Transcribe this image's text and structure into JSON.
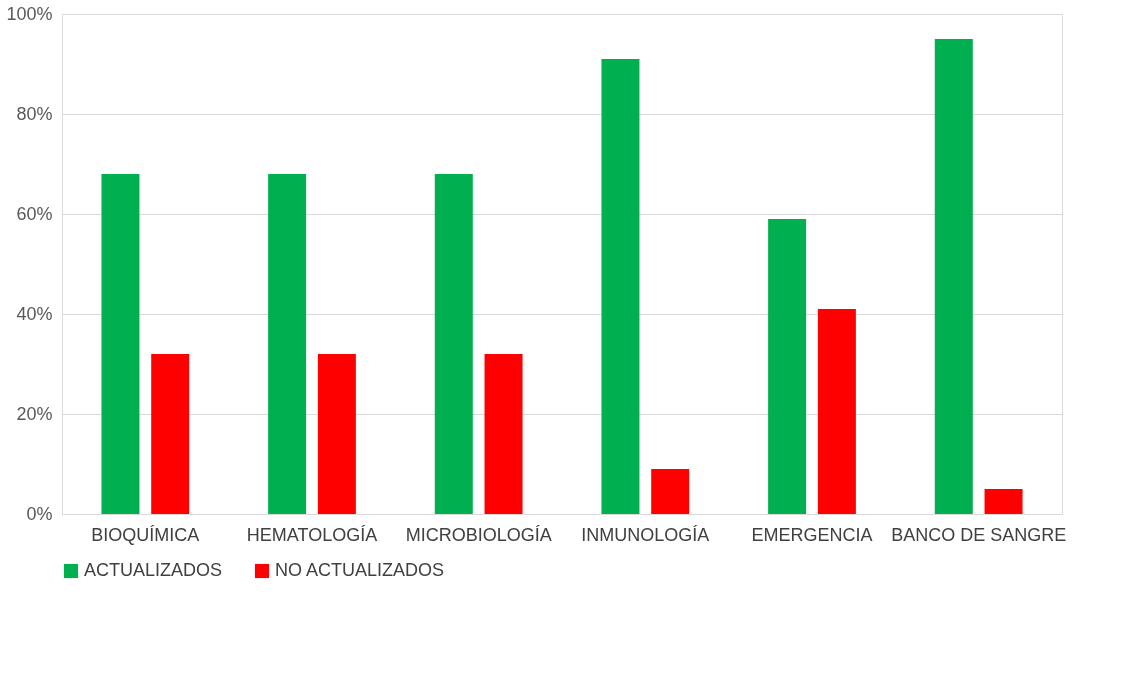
{
  "chart_data": {
    "type": "bar",
    "categories": [
      "BIOQUÍMICA",
      "HEMATOLOGÍA",
      "MICROBIOLOGÍA",
      "INMUNOLOGÍA",
      "EMERGENCIA",
      "BANCO DE SANGRE"
    ],
    "series": [
      {
        "name": "ACTUALIZADOS",
        "color": "#00b050",
        "values": [
          68,
          68,
          68,
          91,
          59,
          95
        ]
      },
      {
        "name": "NO ACTUALIZADOS",
        "color": "#ff0000",
        "values": [
          32,
          32,
          32,
          9,
          41,
          5
        ]
      }
    ],
    "ylim": [
      0,
      100
    ],
    "yticks": [
      {
        "value": 0,
        "label": "0%"
      },
      {
        "value": 20,
        "label": "20%"
      },
      {
        "value": 40,
        "label": "40%"
      },
      {
        "value": 60,
        "label": "60%"
      },
      {
        "value": 80,
        "label": "80%"
      },
      {
        "value": 100,
        "label": "100%"
      }
    ],
    "grid": "y",
    "legend": "bottom"
  }
}
